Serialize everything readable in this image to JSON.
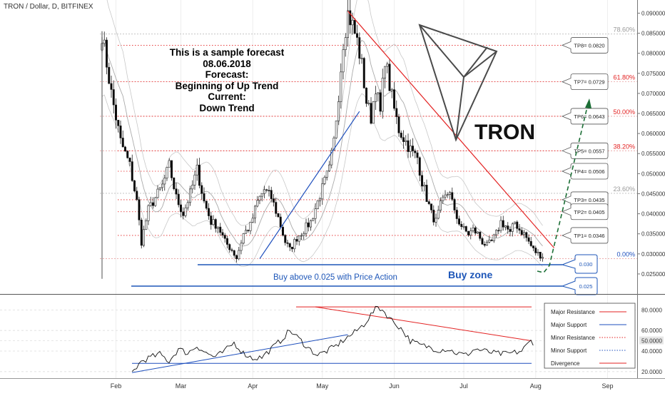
{
  "header": {
    "symbol_line": "TRON / Dollar, D, BITFINEX"
  },
  "forecast_note": {
    "line1": "This is a sample forecast",
    "line2": "08.06.2018",
    "line3": "Forecast:",
    "line4": "Beginning of Up Trend",
    "line5": "Current:",
    "line6": "Down Trend"
  },
  "logo": {
    "text": "TRON"
  },
  "colors": {
    "up": "#ffffff",
    "down": "#000000",
    "resistance": "#e32222",
    "support": "#1e4fbd",
    "dark_green": "#1b6e35",
    "fib": "#888888",
    "box_blue": "#1d56b8"
  },
  "annotations": {
    "buy_above": "Buy above 0.025 with Price Action",
    "buy_zone": "Buy zone",
    "box_030": "0.030",
    "box_025": "0.025"
  },
  "targets": [
    {
      "label": "TP8= 0.0820",
      "value": 0.082
    },
    {
      "label": "TP7= 0.0729",
      "value": 0.0729
    },
    {
      "label": "TP6= 0.0643",
      "value": 0.0643
    },
    {
      "label": "TP5= 0.0557",
      "value": 0.0557
    },
    {
      "label": "TP4= 0.0506",
      "value": 0.0506
    },
    {
      "label": "TP3= 0.0435",
      "value": 0.0435
    },
    {
      "label": "TP2= 0.0405",
      "value": 0.0405
    },
    {
      "label": "TP1= 0.0346",
      "value": 0.0346
    }
  ],
  "fib_levels": [
    {
      "label": "78.60%",
      "value": 0.0848
    },
    {
      "label": "61.80%",
      "value": 0.0729
    },
    {
      "label": "50.00%",
      "value": 0.0643
    },
    {
      "label": "38.20%",
      "value": 0.0557
    },
    {
      "label": "23.60%",
      "value": 0.0451
    },
    {
      "label": "0.00%",
      "value": 0.0288
    }
  ],
  "legend": [
    {
      "label": "Major Resistance",
      "color": "#e32222",
      "style": "solid"
    },
    {
      "label": "Major Support",
      "color": "#1e4fbd",
      "style": "solid"
    },
    {
      "label": "Minor Resistance",
      "color": "#e32222",
      "style": "dotted"
    },
    {
      "label": "Minor Support",
      "color": "#1e4fbd",
      "style": "dotted"
    },
    {
      "label": "Divergence",
      "color": "#e32222",
      "style": "solid"
    }
  ],
  "chart_data": [
    {
      "type": "candlestick",
      "title": "TRON / Dollar, D, BITFINEX",
      "xlabel": "",
      "ylabel": "",
      "ylim": [
        0.0225,
        0.0915
      ],
      "y_ticks": [
        "0.090000",
        "0.085000",
        "0.080000",
        "0.075000",
        "0.070000",
        "0.065000",
        "0.060000",
        "0.055000",
        "0.050000",
        "0.045000",
        "0.040000",
        "0.035000",
        "0.030000",
        "0.025000"
      ],
      "x_ticks": [
        "Feb",
        "Mar",
        "Apr",
        "May",
        "Jun",
        "Jul",
        "Aug",
        "Sep"
      ],
      "anchor_closes": [
        [
          0,
          0.085
        ],
        [
          4,
          0.07
        ],
        [
          8,
          0.058
        ],
        [
          12,
          0.052
        ],
        [
          15,
          0.043
        ],
        [
          17,
          0.033
        ],
        [
          20,
          0.041
        ],
        [
          23,
          0.044
        ],
        [
          26,
          0.047
        ],
        [
          29,
          0.052
        ],
        [
          32,
          0.044
        ],
        [
          35,
          0.04
        ],
        [
          38,
          0.045
        ],
        [
          41,
          0.051
        ],
        [
          44,
          0.043
        ],
        [
          47,
          0.038
        ],
        [
          50,
          0.037
        ],
        [
          53,
          0.033
        ],
        [
          56,
          0.031
        ],
        [
          58,
          0.029
        ],
        [
          61,
          0.035
        ],
        [
          64,
          0.037
        ],
        [
          67,
          0.043
        ],
        [
          70,
          0.046
        ],
        [
          73,
          0.044
        ],
        [
          76,
          0.039
        ],
        [
          79,
          0.033
        ],
        [
          81,
          0.031
        ],
        [
          84,
          0.034
        ],
        [
          87,
          0.036
        ],
        [
          90,
          0.038
        ],
        [
          93,
          0.043
        ],
        [
          96,
          0.048
        ],
        [
          98,
          0.051
        ],
        [
          100,
          0.058
        ],
        [
          102,
          0.07
        ],
        [
          104,
          0.083
        ],
        [
          106,
          0.09
        ],
        [
          108,
          0.087
        ],
        [
          110,
          0.083
        ],
        [
          112,
          0.077
        ],
        [
          114,
          0.068
        ],
        [
          116,
          0.064
        ],
        [
          118,
          0.072
        ],
        [
          120,
          0.065
        ],
        [
          122,
          0.079
        ],
        [
          124,
          0.072
        ],
        [
          126,
          0.066
        ],
        [
          128,
          0.061
        ],
        [
          130,
          0.059
        ],
        [
          132,
          0.057
        ],
        [
          134,
          0.055
        ],
        [
          136,
          0.054
        ],
        [
          138,
          0.048
        ],
        [
          140,
          0.044
        ],
        [
          142,
          0.04
        ],
        [
          144,
          0.038
        ],
        [
          146,
          0.042
        ],
        [
          148,
          0.044
        ],
        [
          150,
          0.046
        ],
        [
          152,
          0.04
        ],
        [
          154,
          0.038
        ],
        [
          156,
          0.036
        ],
        [
          158,
          0.035
        ],
        [
          160,
          0.036
        ],
        [
          162,
          0.035
        ],
        [
          164,
          0.033
        ],
        [
          166,
          0.032
        ],
        [
          168,
          0.033
        ],
        [
          170,
          0.035
        ],
        [
          172,
          0.038
        ],
        [
          174,
          0.037
        ],
        [
          176,
          0.035
        ],
        [
          178,
          0.038
        ],
        [
          180,
          0.036
        ],
        [
          182,
          0.035
        ],
        [
          184,
          0.033
        ],
        [
          186,
          0.031
        ],
        [
          188,
          0.03
        ],
        [
          190,
          0.0295
        ]
      ],
      "first_date": "2018-01-26",
      "candle_count": 191
    },
    {
      "type": "line",
      "title": "",
      "ylim": [
        15,
        90
      ],
      "y_ticks": [
        "80.0000",
        "60.0000",
        "50.0000",
        "40.0000",
        "20.0000"
      ],
      "series": [
        {
          "anchors": [
            [
              0,
              19
            ],
            [
              4,
              30
            ],
            [
              8,
              34
            ],
            [
              12,
              37
            ],
            [
              16,
              30
            ],
            [
              20,
              42
            ],
            [
              24,
              38
            ],
            [
              28,
              45
            ],
            [
              32,
              38
            ],
            [
              36,
              34
            ],
            [
              40,
              40
            ],
            [
              44,
              48
            ],
            [
              48,
              38
            ],
            [
              52,
              33
            ],
            [
              56,
              34
            ],
            [
              60,
              42
            ],
            [
              64,
              50
            ],
            [
              68,
              60
            ],
            [
              72,
              52
            ],
            [
              76,
              43
            ],
            [
              80,
              36
            ],
            [
              84,
              40
            ],
            [
              88,
              45
            ],
            [
              92,
              52
            ],
            [
              96,
              58
            ],
            [
              100,
              66
            ],
            [
              104,
              78
            ],
            [
              106,
              83
            ],
            [
              108,
              80
            ],
            [
              112,
              70
            ],
            [
              116,
              62
            ],
            [
              120,
              50
            ],
            [
              124,
              46
            ],
            [
              128,
              44
            ],
            [
              132,
              41
            ],
            [
              136,
              42
            ],
            [
              140,
              38
            ],
            [
              144,
              36
            ],
            [
              148,
              42
            ],
            [
              152,
              40
            ],
            [
              156,
              38
            ],
            [
              160,
              37
            ],
            [
              164,
              38
            ],
            [
              168,
              40
            ],
            [
              172,
              50
            ],
            [
              176,
              44
            ],
            [
              180,
              52
            ],
            [
              184,
              44
            ],
            [
              188,
              38
            ],
            [
              190,
              36
            ]
          ]
        }
      ]
    }
  ]
}
